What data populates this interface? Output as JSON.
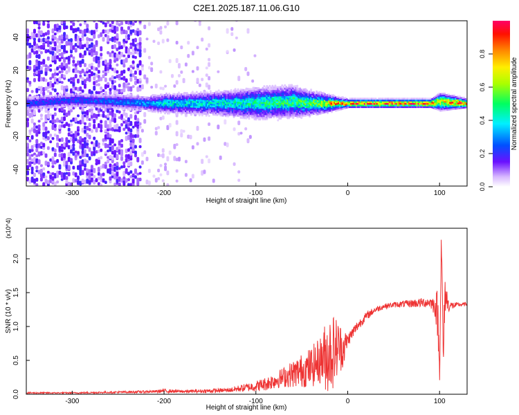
{
  "figure": {
    "title": "C2E1.2025.187.11.06.G10"
  },
  "chart_data": [
    {
      "type": "heatmap",
      "title": "C2E1.2025.187.11.06.G10",
      "xlabel": "Height of straight line (km)",
      "ylabel": "Frequency (Hz)",
      "xlim": [
        -350,
        130
      ],
      "ylim": [
        -50,
        50
      ],
      "x_ticks": [
        -300,
        -200,
        -100,
        0,
        100
      ],
      "x_tick_labels": [
        "-300",
        "-200",
        "-100",
        "0",
        "100"
      ],
      "y_ticks": [
        -40,
        -20,
        0,
        20,
        40
      ],
      "y_tick_labels": [
        "-40",
        "-20",
        "0",
        "20",
        "40"
      ],
      "colorbar": {
        "label": "Normalized spectral amplitude",
        "range": [
          0,
          1
        ],
        "ticks": [
          0.0,
          0.2,
          0.4,
          0.6,
          0.8
        ],
        "tick_labels": [
          "0.0",
          "0.2",
          "0.4",
          "0.6",
          "0.8"
        ]
      },
      "series": [
        {
          "x": [
            -350,
            -225
          ],
          "band": "scattered noise across full frequency range, amplitude ~0.1-0.25"
        },
        {
          "x": [
            -225,
            -150
          ],
          "band": "sparse faint noise, amplitude <0.1"
        },
        {
          "x": [
            -220,
            -20
          ],
          "band": "broadened signal centered at 0 Hz, width ~ +/-10 Hz, amplitude 0.2-0.5"
        },
        {
          "x": [
            -10,
            130
          ],
          "band": "narrow line at 0 Hz, amplitude ~1.0"
        }
      ],
      "signal_profile": {
        "x": [
          -350,
          -300,
          -250,
          -220,
          -200,
          -150,
          -100,
          -60,
          -40,
          -20,
          0,
          40,
          90,
          100,
          130
        ],
        "center_frequency": [
          0,
          2,
          1,
          0,
          0,
          0,
          0,
          1,
          0,
          0,
          0,
          0,
          0,
          1,
          0
        ],
        "half_width": [
          4,
          4,
          4,
          4,
          5,
          6,
          8,
          8,
          6,
          4,
          2,
          2,
          2,
          4,
          2
        ],
        "amplitude": [
          0.25,
          0.25,
          0.3,
          0.35,
          0.45,
          0.45,
          0.5,
          0.55,
          0.6,
          0.85,
          0.95,
          1.0,
          1.0,
          0.8,
          1.0
        ]
      }
    },
    {
      "type": "line",
      "xlabel": "Height of straight line (km)",
      "ylabel": "SNR (10 * v/v)",
      "y_multiplier_label": "(x10^4)",
      "xlim": [
        -350,
        130
      ],
      "ylim": [
        0,
        2.45
      ],
      "x_ticks": [
        -300,
        -200,
        -100,
        0,
        100
      ],
      "x_tick_labels": [
        "-300",
        "-200",
        "-100",
        "0",
        "100"
      ],
      "y_ticks": [
        0.0,
        0.5,
        1.0,
        1.5,
        2.0
      ],
      "y_tick_labels": [
        "0.0",
        "0.5",
        "1.0",
        "1.5",
        "2.0"
      ],
      "line_color": "#ee3333",
      "series": [
        {
          "x": [
            -350,
            -300,
            -250,
            -210,
            -200,
            -180,
            -150,
            -130,
            -120,
            -110,
            -100,
            -90,
            -80,
            -70,
            -60,
            -50,
            -40,
            -30,
            -25,
            -20,
            -15,
            -10,
            -5,
            0,
            10,
            20,
            30,
            40,
            50,
            60,
            70,
            80,
            90,
            95,
            98,
            100,
            102,
            104,
            106,
            110,
            120,
            130
          ],
          "values": [
            0.02,
            0.02,
            0.03,
            0.04,
            0.05,
            0.04,
            0.05,
            0.06,
            0.08,
            0.1,
            0.12,
            0.15,
            0.2,
            0.25,
            0.3,
            0.35,
            0.4,
            0.5,
            0.55,
            0.6,
            0.65,
            0.7,
            0.68,
            0.8,
            1.0,
            1.15,
            1.25,
            1.3,
            1.32,
            1.33,
            1.34,
            1.35,
            1.36,
            1.3,
            1.2,
            0.3,
            2.35,
            0.5,
            1.5,
            1.3,
            1.32,
            1.33
          ],
          "noise": [
            0.01,
            0.01,
            0.015,
            0.02,
            0.03,
            0.02,
            0.03,
            0.03,
            0.05,
            0.06,
            0.08,
            0.1,
            0.12,
            0.15,
            0.2,
            0.25,
            0.3,
            0.35,
            0.5,
            0.6,
            0.55,
            0.4,
            0.3,
            0.1,
            0.08,
            0.06,
            0.05,
            0.04,
            0.04,
            0.05,
            0.06,
            0.07,
            0.08,
            0.15,
            0.4,
            0.2,
            0.2,
            0.4,
            0.3,
            0.08,
            0.03,
            0.03
          ]
        }
      ]
    }
  ]
}
